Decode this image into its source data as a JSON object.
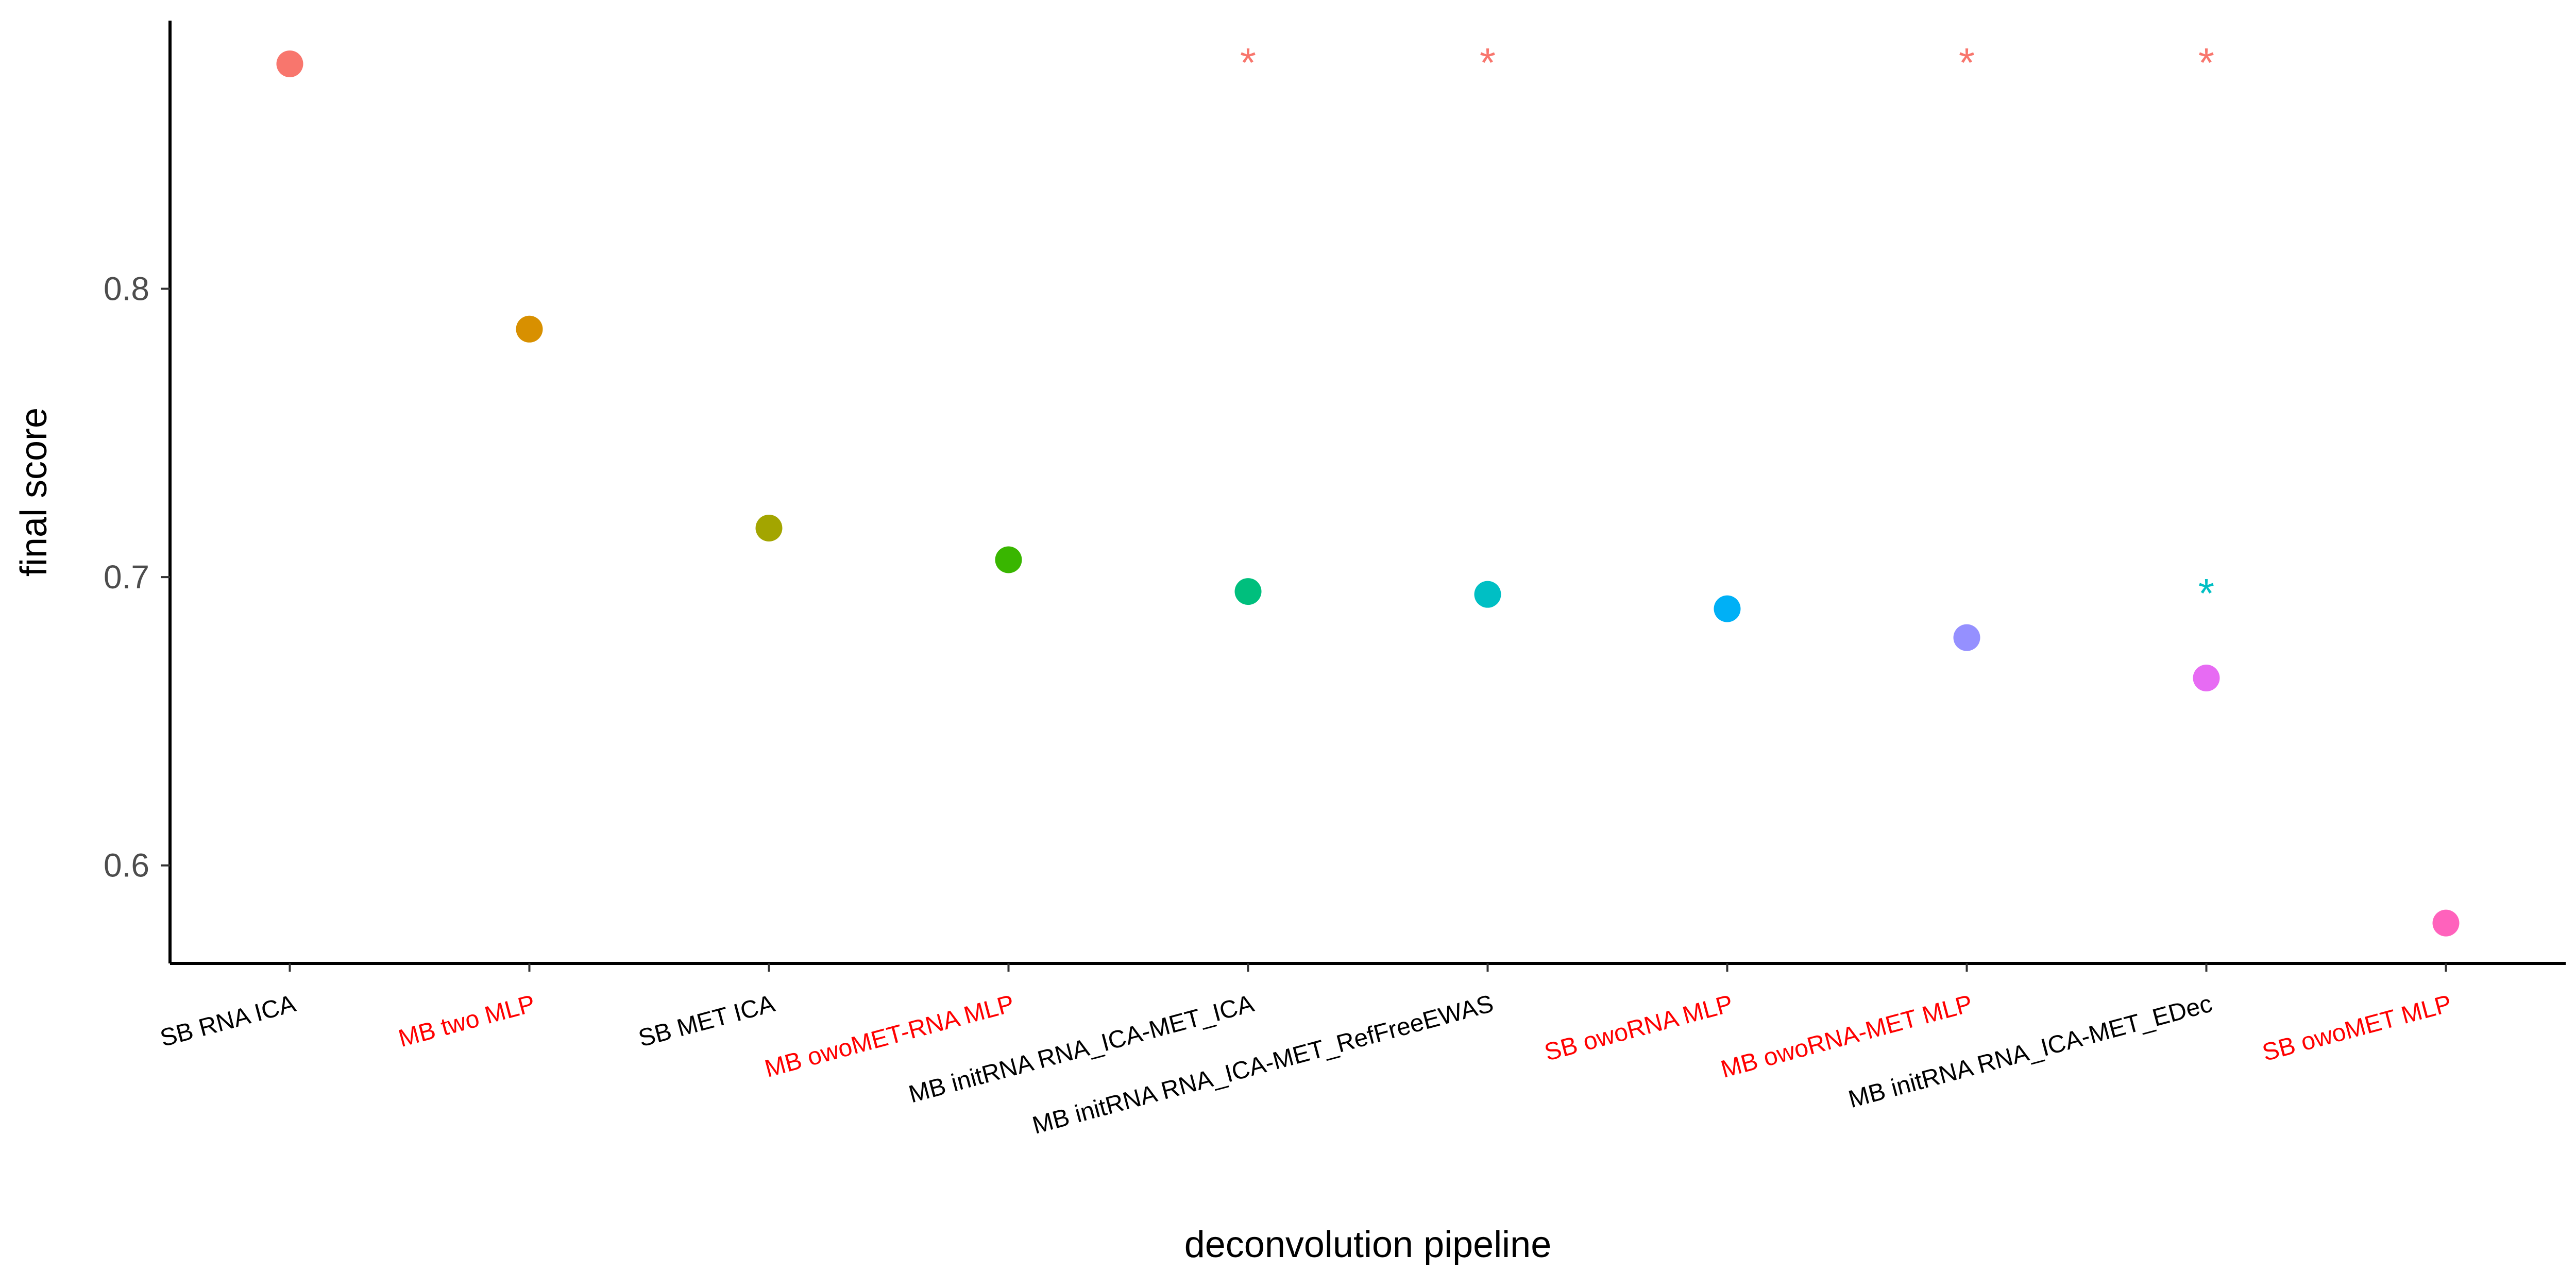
{
  "chart_data": {
    "type": "scatter",
    "title": "",
    "xlabel": "deconvolution pipeline",
    "ylabel": "final score",
    "ylim": [
      0.566,
      0.893
    ],
    "yticks": [
      "0.6",
      "0.7",
      "0.8"
    ],
    "grid": false,
    "legend": "none",
    "categories": [
      "SB RNA ICA",
      "MB two MLP",
      "SB MET ICA",
      "MB owoMET-RNA MLP",
      "MB initRNA RNA_ICA-MET_ICA",
      "MB initRNA RNA_ICA-MET_RefFreeEWAS",
      "SB owoRNA MLP",
      "MB owoRNA-MET MLP",
      "MB initRNA RNA_ICA-MET_EDec",
      "SB owoMET MLP"
    ],
    "values": [
      0.878,
      0.786,
      0.717,
      0.706,
      0.695,
      0.694,
      0.689,
      0.679,
      0.665,
      0.58
    ],
    "point_colors": [
      "#F8766D",
      "#D89000",
      "#A3A500",
      "#39B600",
      "#00BF7D",
      "#00BFC4",
      "#00B0F6",
      "#9590FF",
      "#E76BF3",
      "#FF62BC"
    ],
    "label_colors": [
      "#000000",
      "#FF0000",
      "#000000",
      "#FF0000",
      "#000000",
      "#000000",
      "#FF0000",
      "#FF0000",
      "#000000",
      "#FF0000"
    ],
    "annotations": [
      {
        "text": "*",
        "category": "MB initRNA RNA_ICA-MET_ICA",
        "y": 0.881,
        "color": "#F8766D"
      },
      {
        "text": "*",
        "category": "MB initRNA RNA_ICA-MET_RefFreeEWAS",
        "y": 0.881,
        "color": "#F8766D"
      },
      {
        "text": "*",
        "category": "MB owoRNA-MET MLP",
        "y": 0.881,
        "color": "#F8766D"
      },
      {
        "text": "*",
        "category": "MB initRNA RNA_ICA-MET_EDec",
        "y": 0.881,
        "color": "#F8766D"
      },
      {
        "text": "*",
        "category": "MB initRNA RNA_ICA-MET_EDec",
        "y": 0.697,
        "color": "#00BFC4"
      }
    ]
  }
}
